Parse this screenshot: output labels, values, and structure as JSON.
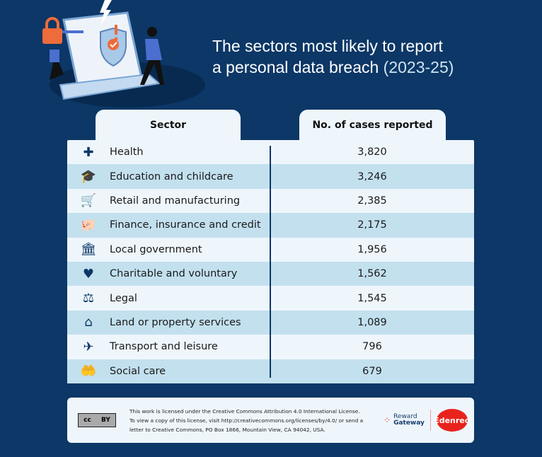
{
  "title": {
    "line1": "The sectors most likely to report",
    "line2": "a personal data breach",
    "years": "(2023-25)"
  },
  "table": {
    "headers": [
      "Sector",
      "No. of cases reported"
    ],
    "rows": [
      {
        "icon": "plus-cross-icon",
        "glyph": "✚",
        "sector": "Health",
        "cases": "3,820"
      },
      {
        "icon": "graduation-cap-icon",
        "glyph": "🎓",
        "sector": "Education and childcare",
        "cases": "3,246"
      },
      {
        "icon": "shopping-cart-icon",
        "glyph": "🛒",
        "sector": "Retail and manufacturing",
        "cases": "2,385"
      },
      {
        "icon": "piggy-bank-icon",
        "glyph": "🐖",
        "sector": "Finance, insurance and credit",
        "cases": "2,175"
      },
      {
        "icon": "government-building-icon",
        "glyph": "🏛",
        "sector": "Local government",
        "cases": "1,956"
      },
      {
        "icon": "heart-icon",
        "glyph": "♥",
        "sector": "Charitable and voluntary",
        "cases": "1,562"
      },
      {
        "icon": "scales-icon",
        "glyph": "⚖",
        "sector": "Legal",
        "cases": "1,545"
      },
      {
        "icon": "house-icon",
        "glyph": "⌂",
        "sector": "Land or property services",
        "cases": "1,089"
      },
      {
        "icon": "airplane-icon",
        "glyph": "✈",
        "sector": "Transport and leisure",
        "cases": "796"
      },
      {
        "icon": "caring-hand-icon",
        "glyph": "🤲",
        "sector": "Social care",
        "cases": "679"
      }
    ]
  },
  "footer": {
    "cc_badge": {
      "cc": "cc",
      "by": "BY"
    },
    "license": "This work is licensed under the Creative Commons Attribution 4.0 International License. To view a copy of this license, visit http://creativecommons.org/licenses/by/4.0/ or send a letter to Creative Commons, PO Box 1866, Mountain View, CA 94042, USA.",
    "logo1": {
      "line1": "Reward",
      "line2": "Gateway"
    },
    "logo2": "Edenred"
  },
  "colors": {
    "background": "#0c3766",
    "row_alt": "#c3e0ee",
    "row": "#eef6fc",
    "accent_orange": "#ee6b3b",
    "edenred": "#e8231c"
  }
}
